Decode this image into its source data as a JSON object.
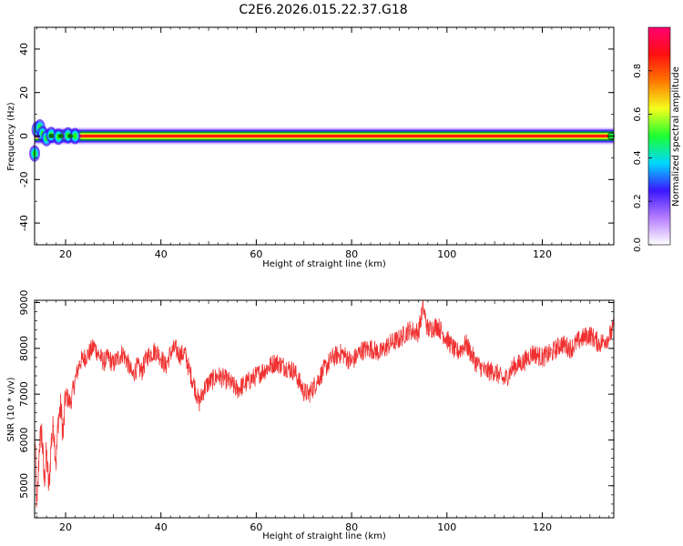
{
  "title": "C2E6.2026.015.22.37.G18",
  "colors": {
    "snr_line": "#f03030",
    "ridge": "#ff2a2a",
    "colormap": [
      "#ffffff",
      "#b57cff",
      "#3b17ff",
      "#00d8ff",
      "#1cff30",
      "#f3ff1c",
      "#ff7a00",
      "#ff1010",
      "#ff0070"
    ]
  },
  "chart_data": [
    {
      "type": "heatmap",
      "xlabel": "Height of straight line (km)",
      "ylabel": "Frequency (Hz)",
      "xlim": [
        13.5,
        135
      ],
      "ylim": [
        -50,
        50
      ],
      "xticks": [
        20,
        40,
        60,
        80,
        100,
        120
      ],
      "yticks": [
        -40,
        -20,
        0,
        20,
        40
      ],
      "ridge": {
        "frequency_hz": 0,
        "x_start": 13.5,
        "x_end": 135,
        "early_oscillation": [
          {
            "x": 13.5,
            "y": -8
          },
          {
            "x": 14.0,
            "y": 3
          },
          {
            "x": 14.6,
            "y": 4
          },
          {
            "x": 15.2,
            "y": 1
          },
          {
            "x": 16.0,
            "y": -1
          },
          {
            "x": 17.0,
            "y": 0.5
          },
          {
            "x": 18.5,
            "y": -0.3
          },
          {
            "x": 20.5,
            "y": 0.3
          },
          {
            "x": 22.0,
            "y": 0
          }
        ]
      },
      "colorbar": {
        "label": "Normalized spectral amplitude",
        "range": [
          0,
          1
        ],
        "ticks": [
          "0.0",
          "0.2",
          "0.4",
          "0.6",
          "0.8"
        ]
      }
    },
    {
      "type": "line",
      "xlabel": "Height of straight line (km)",
      "ylabel": "SNR (10 * v/v)",
      "xlim": [
        13.5,
        135
      ],
      "ylim": [
        4300,
        9050
      ],
      "xticks": [
        20,
        40,
        60,
        80,
        100,
        120
      ],
      "yticks": [
        5000,
        6000,
        7000,
        8000,
        9000
      ],
      "series": [
        {
          "x": [
            13.5,
            14,
            14.5,
            15,
            15.5,
            16,
            16.5,
            17,
            17.5,
            18,
            18.5,
            19,
            19.5,
            20,
            21,
            22,
            23,
            24,
            25,
            26,
            27,
            28,
            29,
            30,
            31,
            32,
            33,
            34,
            35,
            36,
            37,
            38,
            39,
            40,
            41,
            42,
            43,
            44,
            45,
            46,
            47,
            48,
            49,
            50,
            52,
            54,
            56,
            58,
            60,
            62,
            64,
            66,
            68,
            70,
            71,
            72,
            74,
            76,
            78,
            80,
            82,
            84,
            86,
            88,
            90,
            92,
            94,
            95,
            96,
            98,
            100,
            102,
            104,
            106,
            108,
            110,
            112,
            114,
            116,
            118,
            120,
            122,
            124,
            126,
            128,
            130,
            132,
            134,
            135
          ],
          "y": [
            6300,
            4400,
            5900,
            6200,
            5100,
            5700,
            4900,
            6000,
            6300,
            5500,
            6500,
            6700,
            6100,
            7000,
            6800,
            7300,
            7700,
            7800,
            7900,
            8050,
            7850,
            7700,
            7800,
            7650,
            7800,
            7900,
            7700,
            7400,
            7600,
            7500,
            7800,
            7900,
            7950,
            7800,
            7600,
            7900,
            8000,
            7850,
            7900,
            7500,
            7200,
            6800,
            7100,
            7250,
            7400,
            7300,
            7100,
            7250,
            7400,
            7550,
            7700,
            7600,
            7500,
            7050,
            7000,
            7150,
            7500,
            7800,
            7900,
            7700,
            7950,
            8000,
            7900,
            8100,
            8200,
            8400,
            8350,
            8900,
            8400,
            8500,
            8200,
            7900,
            8100,
            7700,
            7500,
            7500,
            7300,
            7600,
            7700,
            7900,
            7800,
            7900,
            8100,
            8000,
            8200,
            8300,
            8100,
            8250,
            8450
          ]
        }
      ]
    }
  ]
}
